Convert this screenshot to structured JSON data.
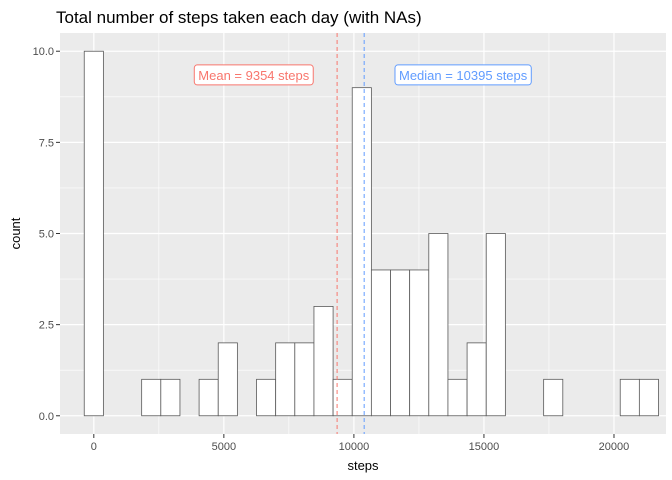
{
  "chart_data": {
    "type": "bar",
    "subtype": "histogram",
    "title": "Total number of steps taken each day (with NAs)",
    "xlabel": "steps",
    "ylabel": "count",
    "xlim": [
      -1300,
      22000
    ],
    "ylim": [
      -0.5,
      10.5
    ],
    "x_ticks": [
      0,
      5000,
      10000,
      15000,
      20000
    ],
    "x_tick_labels": [
      "0",
      "5000",
      "10000",
      "15000",
      "20000"
    ],
    "y_ticks": [
      0,
      2.5,
      5,
      7.5,
      10
    ],
    "y_tick_labels": [
      "0.0",
      "2.5",
      "5.0",
      "7.5",
      "10.0"
    ],
    "bin_width": 736,
    "bin_centers": [
      0,
      736,
      1472,
      2208,
      2944,
      3680,
      4416,
      5152,
      5888,
      6624,
      7360,
      8096,
      8832,
      9568,
      10304,
      11040,
      11776,
      12512,
      13248,
      13984,
      14720,
      15456,
      16192,
      16928,
      17664,
      18400,
      19136,
      19872,
      20608,
      21344
    ],
    "values": [
      10,
      0,
      0,
      1,
      1,
      0,
      1,
      2,
      0,
      1,
      2,
      2,
      3,
      1,
      9,
      4,
      4,
      4,
      5,
      1,
      2,
      5,
      0,
      0,
      1,
      0,
      0,
      0,
      1,
      1
    ],
    "bar_fill": "#ffffff",
    "bar_stroke": "#595959",
    "panel_background": "#ebebeb",
    "grid": true,
    "grid_color": "#ffffff",
    "reference_lines": [
      {
        "label": "Mean = 9354 steps",
        "value": 9354,
        "color": "#f8766d"
      },
      {
        "label": "Median = 10395 steps",
        "value": 10395,
        "color": "#619cff"
      }
    ]
  }
}
